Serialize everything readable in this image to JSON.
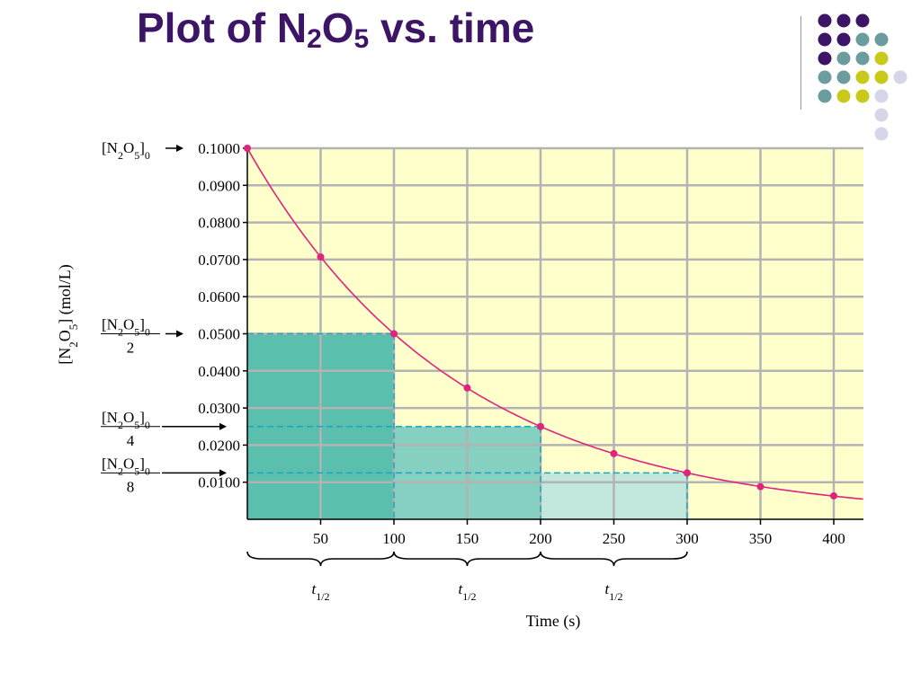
{
  "slide": {
    "title_prefix": "Plot of N",
    "title_sub1": "2",
    "title_mid": "O",
    "title_sub2": "5",
    "title_suffix": " vs. time"
  },
  "chart_data": {
    "type": "line",
    "xlabel": "Time (s)",
    "ylabel_parts": [
      "[N",
      "2",
      "O",
      "5",
      "] (mol/L)"
    ],
    "xlim": [
      0,
      420
    ],
    "ylim": [
      0,
      0.1
    ],
    "x_ticks": [
      50,
      100,
      150,
      200,
      250,
      300,
      350,
      400
    ],
    "y_ticks": [
      "0.0100",
      "0.0200",
      "0.0300",
      "0.0400",
      "0.0500",
      "0.0600",
      "0.0700",
      "0.0800",
      "0.0900",
      "0.1000"
    ],
    "grid": true,
    "series": [
      {
        "points": [
          {
            "x": 0,
            "y": 0.1
          },
          {
            "x": 50,
            "y": 0.0707
          },
          {
            "x": 100,
            "y": 0.05
          },
          {
            "x": 150,
            "y": 0.0354
          },
          {
            "x": 200,
            "y": 0.025
          },
          {
            "x": 250,
            "y": 0.0177
          },
          {
            "x": 300,
            "y": 0.0125
          },
          {
            "x": 350,
            "y": 0.0088
          },
          {
            "x": 400,
            "y": 0.0063
          }
        ],
        "color": "#e0237e"
      }
    ],
    "half_life_regions": [
      {
        "x0": 0,
        "x1": 100,
        "y": 0.05,
        "color": "#5bbfae"
      },
      {
        "x0": 100,
        "x1": 200,
        "y": 0.025,
        "color": "#85d0c0"
      },
      {
        "x0": 200,
        "x1": 300,
        "y": 0.0125,
        "color": "#c2e8de"
      }
    ],
    "concentration_labels": [
      {
        "y": 0.1,
        "numerator_parts": [
          "[N",
          "2",
          "O",
          "5",
          "]",
          "0"
        ],
        "denominator": ""
      },
      {
        "y": 0.05,
        "numerator_parts": [
          "[N",
          "2",
          "O",
          "5",
          "]",
          "0"
        ],
        "denominator": "2"
      },
      {
        "y": 0.025,
        "numerator_parts": [
          "[N",
          "2",
          "O",
          "5",
          "]",
          "0"
        ],
        "denominator": "4"
      },
      {
        "y": 0.0125,
        "numerator_parts": [
          "[N",
          "2",
          "O",
          "5",
          "]",
          "0"
        ],
        "denominator": "8"
      }
    ],
    "half_life_label_parts": [
      "t",
      "1/2"
    ],
    "colors": {
      "plot_background": "#ffffcc",
      "grid": "#b3b3b3",
      "dashed": "#1aa6bf",
      "curve": "#e0237e",
      "text": "#000000"
    }
  },
  "decoration": {
    "dot_colors": {
      "purple": "#3d1566",
      "teal": "#6c9d9e",
      "yellow": "#c9c91a",
      "lavender": "#d6d6ea"
    }
  }
}
